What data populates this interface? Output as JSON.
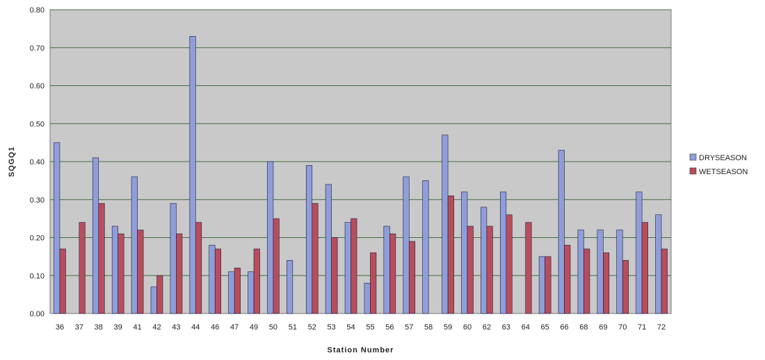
{
  "chart_data": {
    "type": "bar",
    "xlabel": "Station Number",
    "ylabel": "SQGQ1",
    "ylim": [
      0,
      0.8
    ],
    "yticks": [
      "0.00",
      "0.10",
      "0.20",
      "0.30",
      "0.40",
      "0.50",
      "0.60",
      "0.70",
      "0.80"
    ],
    "grid": true,
    "legend_position": "right",
    "categories": [
      "36",
      "37",
      "38",
      "39",
      "41",
      "42",
      "43",
      "44",
      "46",
      "47",
      "49",
      "50",
      "51",
      "52",
      "53",
      "54",
      "55",
      "56",
      "57",
      "58",
      "59",
      "60",
      "62",
      "63",
      "64",
      "65",
      "66",
      "68",
      "69",
      "70",
      "71",
      "72"
    ],
    "series": [
      {
        "name": "DRYSEASON",
        "color": "#8f9ed8",
        "values": [
          0.45,
          null,
          0.41,
          0.23,
          0.36,
          0.07,
          0.29,
          0.73,
          0.18,
          0.11,
          0.11,
          0.4,
          0.14,
          0.39,
          0.34,
          0.24,
          0.08,
          0.23,
          0.36,
          0.35,
          0.47,
          0.32,
          0.28,
          0.32,
          null,
          0.15,
          0.43,
          0.22,
          0.22,
          0.22,
          0.32,
          0.26
        ]
      },
      {
        "name": "WETSEASON",
        "color": "#b84d5c",
        "values": [
          0.17,
          0.24,
          0.29,
          0.21,
          0.22,
          0.1,
          0.21,
          0.24,
          0.17,
          0.12,
          0.17,
          0.25,
          null,
          0.29,
          0.2,
          0.25,
          0.16,
          0.21,
          0.19,
          null,
          0.31,
          0.23,
          0.23,
          0.26,
          0.24,
          0.15,
          0.18,
          0.17,
          0.16,
          0.14,
          0.24,
          0.17
        ]
      }
    ],
    "plot_bg": "#c9c9c9",
    "grid_color": "#3f6f3f"
  }
}
